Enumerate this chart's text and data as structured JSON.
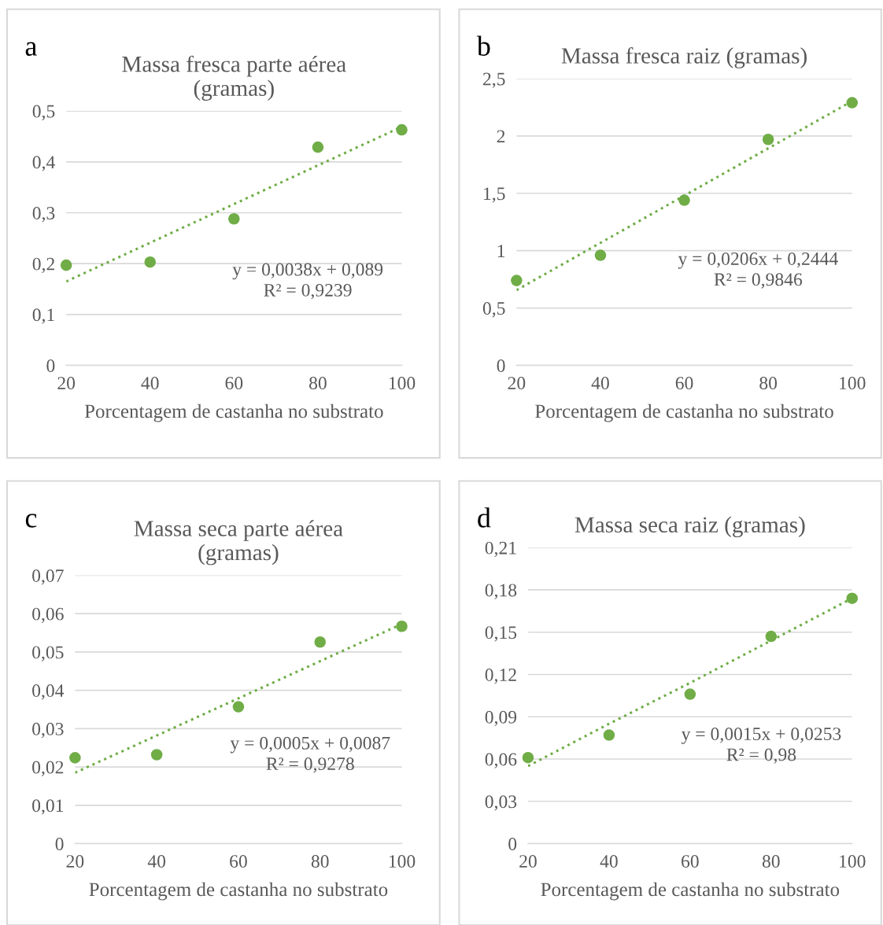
{
  "chart_data": [
    {
      "type": "scatter",
      "title": "Massa fresca parte aérea\n(gramas)",
      "xlabel": "Porcentagem de castanha no substrato",
      "x": [
        20,
        40,
        60,
        80,
        100
      ],
      "xlim": [
        20,
        100
      ],
      "xticks": [
        20,
        40,
        60,
        80,
        100
      ],
      "ylim": [
        0,
        0.5
      ],
      "yticks": [
        0,
        {
          "value": 0.1,
          "label": "0,1"
        },
        {
          "value": 0.2,
          "label": "0,2"
        },
        {
          "value": 0.3,
          "label": "0,3"
        },
        {
          "value": 0.4,
          "label": "0,4"
        },
        {
          "value": 0.5,
          "label": "0,5"
        }
      ],
      "grid": "y",
      "legend": false,
      "annotations": [
        "a",
        "y = 0,0038x + 0,089\nR² = 0,9239"
      ],
      "series": [
        {
          "type": "scatter",
          "color": "#70ad47",
          "marker": "circle",
          "values": [
            0.197,
            0.203,
            0.288,
            0.429,
            0.463
          ]
        },
        {
          "type": "line",
          "color": "#70ad47",
          "line_style": "dotted",
          "marker": "none",
          "values": [
            0.165,
            0.241,
            0.317,
            0.393,
            0.469
          ]
        }
      ]
    },
    {
      "type": "scatter",
      "title": "Massa fresca raiz (gramas)",
      "xlabel": "Porcentagem de castanha no substrato",
      "x": [
        20,
        40,
        60,
        80,
        100
      ],
      "xlim": [
        20,
        100
      ],
      "xticks": [
        20,
        40,
        60,
        80,
        100
      ],
      "ylim": [
        0,
        2.5
      ],
      "yticks": [
        0,
        {
          "value": 0.5,
          "label": "0,5"
        },
        1,
        {
          "value": 1.5,
          "label": "1,5"
        },
        2,
        {
          "value": 2.5,
          "label": "2,5"
        }
      ],
      "grid": "y",
      "legend": false,
      "annotations": [
        "b",
        "y = 0,0206x + 0,2444\nR² = 0,9846"
      ],
      "series": [
        {
          "type": "scatter",
          "color": "#70ad47",
          "marker": "circle",
          "values": [
            0.74,
            0.96,
            1.44,
            1.97,
            2.29
          ]
        },
        {
          "type": "line",
          "color": "#70ad47",
          "line_style": "dotted",
          "marker": "none",
          "values": [
            0.656,
            1.068,
            1.48,
            1.892,
            2.304
          ]
        }
      ]
    },
    {
      "type": "scatter",
      "title": "Massa seca parte aérea\n(gramas)",
      "xlabel": "Porcentagem de castanha no substrato",
      "x": [
        20,
        40,
        60,
        80,
        100
      ],
      "xlim": [
        20,
        100
      ],
      "xticks": [
        20,
        40,
        60,
        80,
        100
      ],
      "ylim": [
        0,
        0.07
      ],
      "yticks": [
        0,
        {
          "value": 0.01,
          "label": "0,01"
        },
        {
          "value": 0.02,
          "label": "0,02"
        },
        {
          "value": 0.03,
          "label": "0,03"
        },
        {
          "value": 0.04,
          "label": "0,04"
        },
        {
          "value": 0.05,
          "label": "0,05"
        },
        {
          "value": 0.06,
          "label": "0,06"
        },
        {
          "value": 0.07,
          "label": "0,07"
        }
      ],
      "grid": "y",
      "legend": false,
      "annotations": [
        "c",
        "y = 0,0005x + 0,0087\nR² = 0,9278"
      ],
      "series": [
        {
          "type": "scatter",
          "color": "#70ad47",
          "marker": "circle",
          "values": [
            0.0224,
            0.0232,
            0.0357,
            0.0526,
            0.0567
          ]
        },
        {
          "type": "line",
          "color": "#70ad47",
          "line_style": "dotted",
          "marker": "none",
          "values": [
            0.0185,
            0.0282,
            0.0379,
            0.0476,
            0.0573
          ]
        }
      ]
    },
    {
      "type": "scatter",
      "title": "Massa seca raiz (gramas)",
      "xlabel": "Porcentagem de castanha no substrato",
      "x": [
        20,
        40,
        60,
        80,
        100
      ],
      "xlim": [
        20,
        100
      ],
      "xticks": [
        20,
        40,
        60,
        80,
        100
      ],
      "ylim": [
        0,
        0.21
      ],
      "yticks": [
        0,
        {
          "value": 0.03,
          "label": "0,03"
        },
        {
          "value": 0.06,
          "label": "0,06"
        },
        {
          "value": 0.09,
          "label": "0,09"
        },
        {
          "value": 0.12,
          "label": "0,12"
        },
        {
          "value": 0.15,
          "label": "0,15"
        },
        {
          "value": 0.18,
          "label": "0,18"
        },
        {
          "value": 0.21,
          "label": "0,21"
        }
      ],
      "grid": "y",
      "legend": false,
      "annotations": [
        "d",
        "y = 0,0015x + 0,0253\nR² = 0,98"
      ],
      "series": [
        {
          "type": "scatter",
          "color": "#70ad47",
          "marker": "circle",
          "values": [
            0.061,
            0.077,
            0.106,
            0.147,
            0.174
          ]
        },
        {
          "type": "line",
          "color": "#70ad47",
          "line_style": "dotted",
          "marker": "none",
          "values": [
            0.055,
            0.085,
            0.114,
            0.144,
            0.174
          ]
        }
      ]
    }
  ]
}
